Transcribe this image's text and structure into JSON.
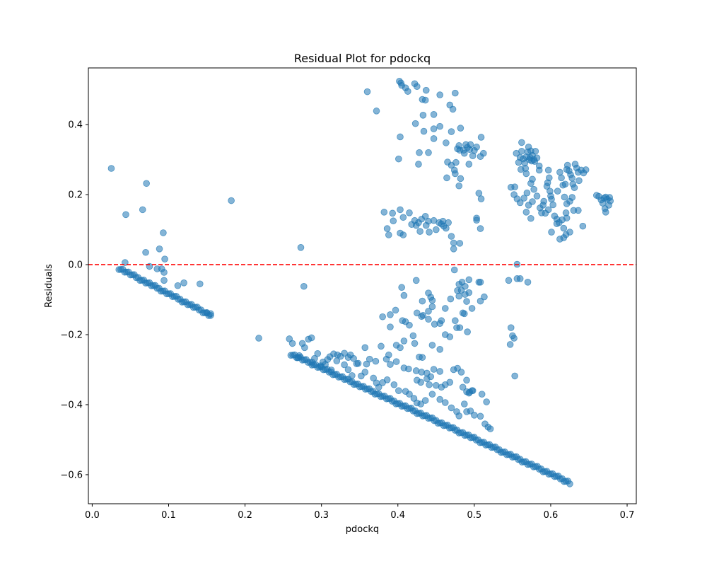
{
  "chart_data": {
    "type": "scatter",
    "title": "Residual Plot for pdockq",
    "xlabel": "pdockq",
    "ylabel": "Residuals",
    "xlim": [
      -0.005,
      0.712
    ],
    "ylim": [
      -0.683,
      0.562
    ],
    "xticks": [
      0.0,
      0.1,
      0.2,
      0.3,
      0.4,
      0.5,
      0.6,
      0.7
    ],
    "xtick_labels": [
      "0.0",
      "0.1",
      "0.2",
      "0.3",
      "0.4",
      "0.5",
      "0.6",
      "0.7"
    ],
    "yticks": [
      -0.6,
      -0.4,
      -0.2,
      0.0,
      0.2,
      0.4
    ],
    "ytick_labels": [
      "−0.6",
      "−0.4",
      "−0.2",
      "0.0",
      "0.2",
      "0.4"
    ],
    "grid": false,
    "marker_color": "#1f77b4",
    "marker_alpha": 0.55,
    "reference_line": {
      "y": 0.0,
      "color": "#ff0000",
      "style": "dashed"
    },
    "band_lines": [
      {
        "x_start": 0.035,
        "x_end": 0.155,
        "y_start": -0.01,
        "y_end": -0.145
      },
      {
        "x_start": 0.26,
        "x_end": 0.625,
        "y_start": -0.255,
        "y_end": -0.623
      }
    ],
    "points": [
      [
        0.025,
        0.275
      ],
      [
        0.044,
        0.143
      ],
      [
        0.066,
        0.157
      ],
      [
        0.071,
        0.232
      ],
      [
        0.093,
        0.091
      ],
      [
        0.088,
        0.045
      ],
      [
        0.07,
        0.035
      ],
      [
        0.095,
        0.016
      ],
      [
        0.043,
        0.006
      ],
      [
        0.075,
        -0.005
      ],
      [
        0.182,
        0.183
      ],
      [
        0.273,
        0.049
      ],
      [
        0.277,
        -0.062
      ],
      [
        0.218,
        -0.21
      ],
      [
        0.141,
        -0.055
      ],
      [
        0.155,
        -0.14
      ],
      [
        0.15,
        -0.138
      ],
      [
        0.112,
        -0.06
      ],
      [
        0.12,
        -0.052
      ],
      [
        0.094,
        -0.045
      ],
      [
        0.085,
        -0.012
      ],
      [
        0.091,
        -0.012
      ],
      [
        0.094,
        -0.022
      ],
      [
        0.36,
        0.494
      ],
      [
        0.372,
        0.439
      ],
      [
        0.402,
        0.524
      ],
      [
        0.404,
        0.519
      ],
      [
        0.405,
        0.512
      ],
      [
        0.41,
        0.505
      ],
      [
        0.413,
        0.495
      ],
      [
        0.422,
        0.517
      ],
      [
        0.425,
        0.509
      ],
      [
        0.437,
        0.498
      ],
      [
        0.432,
        0.472
      ],
      [
        0.436,
        0.47
      ],
      [
        0.455,
        0.485
      ],
      [
        0.475,
        0.49
      ],
      [
        0.468,
        0.456
      ],
      [
        0.472,
        0.444
      ],
      [
        0.433,
        0.427
      ],
      [
        0.447,
        0.429
      ],
      [
        0.423,
        0.403
      ],
      [
        0.455,
        0.395
      ],
      [
        0.447,
        0.388
      ],
      [
        0.434,
        0.381
      ],
      [
        0.403,
        0.365
      ],
      [
        0.44,
        0.32
      ],
      [
        0.428,
        0.32
      ],
      [
        0.463,
        0.348
      ],
      [
        0.47,
        0.38
      ],
      [
        0.482,
        0.39
      ],
      [
        0.447,
        0.36
      ],
      [
        0.478,
        0.331
      ],
      [
        0.401,
        0.302
      ],
      [
        0.427,
        0.287
      ],
      [
        0.465,
        0.293
      ],
      [
        0.47,
        0.284
      ],
      [
        0.474,
        0.27
      ],
      [
        0.464,
        0.248
      ],
      [
        0.482,
        0.246
      ],
      [
        0.48,
        0.225
      ],
      [
        0.5,
        0.326
      ],
      [
        0.498,
        0.311
      ],
      [
        0.503,
        0.336
      ],
      [
        0.508,
        0.309
      ],
      [
        0.512,
        0.318
      ],
      [
        0.509,
        0.364
      ],
      [
        0.489,
        0.343
      ],
      [
        0.491,
        0.335
      ],
      [
        0.494,
        0.329
      ],
      [
        0.495,
        0.343
      ],
      [
        0.486,
        0.327
      ],
      [
        0.48,
        0.34
      ],
      [
        0.481,
        0.327
      ],
      [
        0.487,
        0.318
      ],
      [
        0.476,
        0.292
      ],
      [
        0.493,
        0.287
      ],
      [
        0.475,
        0.26
      ],
      [
        0.382,
        0.15
      ],
      [
        0.393,
        0.147
      ],
      [
        0.403,
        0.157
      ],
      [
        0.415,
        0.148
      ],
      [
        0.422,
        0.126
      ],
      [
        0.427,
        0.12
      ],
      [
        0.424,
        0.112
      ],
      [
        0.431,
        0.13
      ],
      [
        0.436,
        0.138
      ],
      [
        0.44,
        0.124
      ],
      [
        0.447,
        0.126
      ],
      [
        0.454,
        0.12
      ],
      [
        0.457,
        0.116
      ],
      [
        0.46,
        0.11
      ],
      [
        0.466,
        0.12
      ],
      [
        0.47,
        0.081
      ],
      [
        0.473,
        0.062
      ],
      [
        0.473,
        0.045
      ],
      [
        0.481,
        0.061
      ],
      [
        0.437,
        0.112
      ],
      [
        0.441,
        0.093
      ],
      [
        0.429,
        0.095
      ],
      [
        0.418,
        0.115
      ],
      [
        0.407,
        0.085
      ],
      [
        0.403,
        0.09
      ],
      [
        0.394,
        0.125
      ],
      [
        0.386,
        0.103
      ],
      [
        0.388,
        0.085
      ],
      [
        0.407,
        0.135
      ],
      [
        0.45,
        0.1
      ],
      [
        0.459,
        0.124
      ],
      [
        0.463,
        0.104
      ],
      [
        0.509,
        0.188
      ],
      [
        0.506,
        0.204
      ],
      [
        0.503,
        0.133
      ],
      [
        0.503,
        0.127
      ],
      [
        0.508,
        0.103
      ],
      [
        0.555,
        0.318
      ],
      [
        0.558,
        0.292
      ],
      [
        0.562,
        0.324
      ],
      [
        0.564,
        0.302
      ],
      [
        0.566,
        0.29
      ],
      [
        0.567,
        0.275
      ],
      [
        0.568,
        0.308
      ],
      [
        0.57,
        0.322
      ],
      [
        0.572,
        0.3
      ],
      [
        0.574,
        0.325
      ],
      [
        0.576,
        0.312
      ],
      [
        0.578,
        0.3
      ],
      [
        0.579,
        0.295
      ],
      [
        0.58,
        0.324
      ],
      [
        0.562,
        0.349
      ],
      [
        0.571,
        0.336
      ],
      [
        0.573,
        0.306
      ],
      [
        0.575,
        0.296
      ],
      [
        0.56,
        0.306
      ],
      [
        0.582,
        0.305
      ],
      [
        0.585,
        0.282
      ],
      [
        0.568,
        0.26
      ],
      [
        0.561,
        0.272
      ],
      [
        0.553,
        0.222
      ],
      [
        0.548,
        0.221
      ],
      [
        0.552,
        0.2
      ],
      [
        0.556,
        0.188
      ],
      [
        0.56,
        0.177
      ],
      [
        0.565,
        0.19
      ],
      [
        0.569,
        0.205
      ],
      [
        0.571,
        0.17
      ],
      [
        0.568,
        0.15
      ],
      [
        0.574,
        0.232
      ],
      [
        0.576,
        0.244
      ],
      [
        0.578,
        0.215
      ],
      [
        0.582,
        0.196
      ],
      [
        0.586,
        0.162
      ],
      [
        0.588,
        0.148
      ],
      [
        0.59,
        0.17
      ],
      [
        0.591,
        0.181
      ],
      [
        0.595,
        0.224
      ],
      [
        0.596,
        0.234
      ],
      [
        0.598,
        0.248
      ],
      [
        0.599,
        0.21
      ],
      [
        0.6,
        0.196
      ],
      [
        0.601,
        0.187
      ],
      [
        0.593,
        0.147
      ],
      [
        0.597,
        0.157
      ],
      [
        0.603,
        0.171
      ],
      [
        0.605,
        0.139
      ],
      [
        0.608,
        0.13
      ],
      [
        0.609,
        0.21
      ],
      [
        0.612,
        0.264
      ],
      [
        0.614,
        0.248
      ],
      [
        0.616,
        0.227
      ],
      [
        0.619,
        0.23
      ],
      [
        0.621,
        0.272
      ],
      [
        0.622,
        0.284
      ],
      [
        0.624,
        0.268
      ],
      [
        0.626,
        0.257
      ],
      [
        0.628,
        0.247
      ],
      [
        0.629,
        0.23
      ],
      [
        0.631,
        0.22
      ],
      [
        0.632,
        0.287
      ],
      [
        0.634,
        0.276
      ],
      [
        0.636,
        0.264
      ],
      [
        0.637,
        0.24
      ],
      [
        0.64,
        0.27
      ],
      [
        0.643,
        0.262
      ],
      [
        0.646,
        0.271
      ],
      [
        0.618,
        0.193
      ],
      [
        0.621,
        0.174
      ],
      [
        0.625,
        0.181
      ],
      [
        0.628,
        0.192
      ],
      [
        0.63,
        0.155
      ],
      [
        0.636,
        0.155
      ],
      [
        0.642,
        0.11
      ],
      [
        0.62,
        0.148
      ],
      [
        0.621,
        0.133
      ],
      [
        0.617,
        0.104
      ],
      [
        0.615,
        0.128
      ],
      [
        0.611,
        0.12
      ],
      [
        0.625,
        0.093
      ],
      [
        0.62,
        0.086
      ],
      [
        0.617,
        0.077
      ],
      [
        0.612,
        0.073
      ],
      [
        0.601,
        0.093
      ],
      [
        0.608,
        0.117
      ],
      [
        0.66,
        0.198
      ],
      [
        0.663,
        0.195
      ],
      [
        0.666,
        0.185
      ],
      [
        0.668,
        0.176
      ],
      [
        0.67,
        0.19
      ],
      [
        0.672,
        0.193
      ],
      [
        0.674,
        0.187
      ],
      [
        0.676,
        0.17
      ],
      [
        0.671,
        0.16
      ],
      [
        0.672,
        0.15
      ],
      [
        0.678,
        0.182
      ],
      [
        0.677,
        0.192
      ],
      [
        0.574,
        0.132
      ],
      [
        0.576,
        0.18
      ],
      [
        0.585,
        0.27
      ],
      [
        0.597,
        0.27
      ],
      [
        0.556,
        0.001
      ],
      [
        0.556,
        -0.04
      ],
      [
        0.56,
        -0.04
      ],
      [
        0.545,
        -0.045
      ],
      [
        0.57,
        -0.05
      ],
      [
        0.405,
        -0.065
      ],
      [
        0.424,
        -0.045
      ],
      [
        0.408,
        -0.088
      ],
      [
        0.432,
        -0.104
      ],
      [
        0.44,
        -0.081
      ],
      [
        0.443,
        -0.093
      ],
      [
        0.445,
        -0.102
      ],
      [
        0.425,
        -0.138
      ],
      [
        0.431,
        -0.148
      ],
      [
        0.433,
        -0.145
      ],
      [
        0.44,
        -0.133
      ],
      [
        0.455,
        -0.168
      ],
      [
        0.448,
        -0.17
      ],
      [
        0.462,
        -0.125
      ],
      [
        0.469,
        -0.098
      ],
      [
        0.474,
        -0.015
      ],
      [
        0.484,
        -0.05
      ],
      [
        0.488,
        -0.062
      ],
      [
        0.493,
        -0.043
      ],
      [
        0.493,
        -0.08
      ],
      [
        0.49,
        -0.105
      ],
      [
        0.506,
        -0.05
      ],
      [
        0.508,
        -0.05
      ],
      [
        0.488,
        -0.085
      ],
      [
        0.483,
        -0.073
      ],
      [
        0.48,
        -0.056
      ],
      [
        0.478,
        -0.074
      ],
      [
        0.48,
        -0.09
      ],
      [
        0.485,
        -0.138
      ],
      [
        0.487,
        -0.14
      ],
      [
        0.508,
        -0.104
      ],
      [
        0.513,
        -0.092
      ],
      [
        0.497,
        -0.125
      ],
      [
        0.475,
        -0.16
      ],
      [
        0.491,
        -0.192
      ],
      [
        0.481,
        -0.18
      ],
      [
        0.462,
        -0.2
      ],
      [
        0.468,
        -0.206
      ],
      [
        0.457,
        -0.16
      ],
      [
        0.548,
        -0.18
      ],
      [
        0.55,
        -0.203
      ],
      [
        0.552,
        -0.21
      ],
      [
        0.547,
        -0.228
      ],
      [
        0.553,
        -0.318
      ],
      [
        0.39,
        -0.143
      ],
      [
        0.397,
        -0.13
      ],
      [
        0.39,
        -0.178
      ],
      [
        0.406,
        -0.16
      ],
      [
        0.41,
        -0.163
      ],
      [
        0.415,
        -0.173
      ],
      [
        0.42,
        -0.203
      ],
      [
        0.408,
        -0.218
      ],
      [
        0.422,
        -0.225
      ],
      [
        0.38,
        -0.149
      ],
      [
        0.378,
        -0.233
      ],
      [
        0.357,
        -0.237
      ],
      [
        0.359,
        -0.284
      ],
      [
        0.371,
        -0.276
      ],
      [
        0.363,
        -0.27
      ],
      [
        0.398,
        -0.23
      ],
      [
        0.403,
        -0.237
      ],
      [
        0.398,
        -0.277
      ],
      [
        0.388,
        -0.258
      ],
      [
        0.385,
        -0.27
      ],
      [
        0.39,
        -0.285
      ],
      [
        0.408,
        -0.295
      ],
      [
        0.414,
        -0.298
      ],
      [
        0.424,
        -0.303
      ],
      [
        0.431,
        -0.307
      ],
      [
        0.438,
        -0.31
      ],
      [
        0.443,
        -0.32
      ],
      [
        0.447,
        -0.299
      ],
      [
        0.455,
        -0.305
      ],
      [
        0.438,
        -0.326
      ],
      [
        0.43,
        -0.336
      ],
      [
        0.425,
        -0.33
      ],
      [
        0.441,
        -0.343
      ],
      [
        0.45,
        -0.345
      ],
      [
        0.457,
        -0.35
      ],
      [
        0.462,
        -0.343
      ],
      [
        0.468,
        -0.336
      ],
      [
        0.473,
        -0.3
      ],
      [
        0.478,
        -0.296
      ],
      [
        0.483,
        -0.307
      ],
      [
        0.485,
        -0.35
      ],
      [
        0.49,
        -0.363
      ],
      [
        0.494,
        -0.364
      ],
      [
        0.498,
        -0.36
      ],
      [
        0.49,
        -0.33
      ],
      [
        0.51,
        -0.37
      ],
      [
        0.516,
        -0.392
      ],
      [
        0.497,
        -0.36
      ],
      [
        0.493,
        -0.367
      ],
      [
        0.445,
        -0.37
      ],
      [
        0.455,
        -0.385
      ],
      [
        0.462,
        -0.394
      ],
      [
        0.47,
        -0.409
      ],
      [
        0.477,
        -0.42
      ],
      [
        0.48,
        -0.432
      ],
      [
        0.487,
        -0.398
      ],
      [
        0.49,
        -0.42
      ],
      [
        0.495,
        -0.418
      ],
      [
        0.5,
        -0.43
      ],
      [
        0.508,
        -0.433
      ],
      [
        0.514,
        -0.455
      ],
      [
        0.518,
        -0.464
      ],
      [
        0.521,
        -0.469
      ],
      [
        0.455,
        -0.242
      ],
      [
        0.445,
        -0.23
      ],
      [
        0.428,
        -0.264
      ],
      [
        0.432,
        -0.265
      ],
      [
        0.477,
        -0.18
      ],
      [
        0.44,
        -0.156
      ],
      [
        0.445,
        -0.12
      ],
      [
        0.32,
        -0.275
      ],
      [
        0.33,
        -0.286
      ],
      [
        0.335,
        -0.265
      ],
      [
        0.346,
        -0.283
      ],
      [
        0.352,
        -0.318
      ],
      [
        0.34,
        -0.317
      ],
      [
        0.357,
        -0.307
      ],
      [
        0.368,
        -0.324
      ],
      [
        0.372,
        -0.338
      ],
      [
        0.375,
        -0.35
      ],
      [
        0.38,
        -0.337
      ],
      [
        0.386,
        -0.329
      ],
      [
        0.395,
        -0.343
      ],
      [
        0.401,
        -0.36
      ],
      [
        0.41,
        -0.362
      ],
      [
        0.415,
        -0.37
      ],
      [
        0.421,
        -0.382
      ],
      [
        0.425,
        -0.395
      ],
      [
        0.43,
        -0.398
      ],
      [
        0.436,
        -0.388
      ],
      [
        0.295,
        -0.254
      ],
      [
        0.291,
        -0.268
      ],
      [
        0.302,
        -0.278
      ],
      [
        0.308,
        -0.271
      ],
      [
        0.316,
        -0.255
      ],
      [
        0.321,
        -0.258
      ],
      [
        0.325,
        -0.262
      ],
      [
        0.311,
        -0.263
      ],
      [
        0.305,
        -0.285
      ],
      [
        0.283,
        -0.213
      ],
      [
        0.287,
        -0.209
      ],
      [
        0.278,
        -0.237
      ],
      [
        0.269,
        -0.266
      ],
      [
        0.271,
        -0.26
      ],
      [
        0.262,
        -0.225
      ],
      [
        0.258,
        -0.212
      ],
      [
        0.275,
        -0.225
      ],
      [
        0.288,
        -0.279
      ],
      [
        0.299,
        -0.289
      ],
      [
        0.313,
        -0.301
      ],
      [
        0.33,
        -0.253
      ],
      [
        0.338,
        -0.258
      ],
      [
        0.342,
        -0.268
      ],
      [
        0.348,
        -0.282
      ],
      [
        0.335,
        -0.3
      ]
    ]
  }
}
